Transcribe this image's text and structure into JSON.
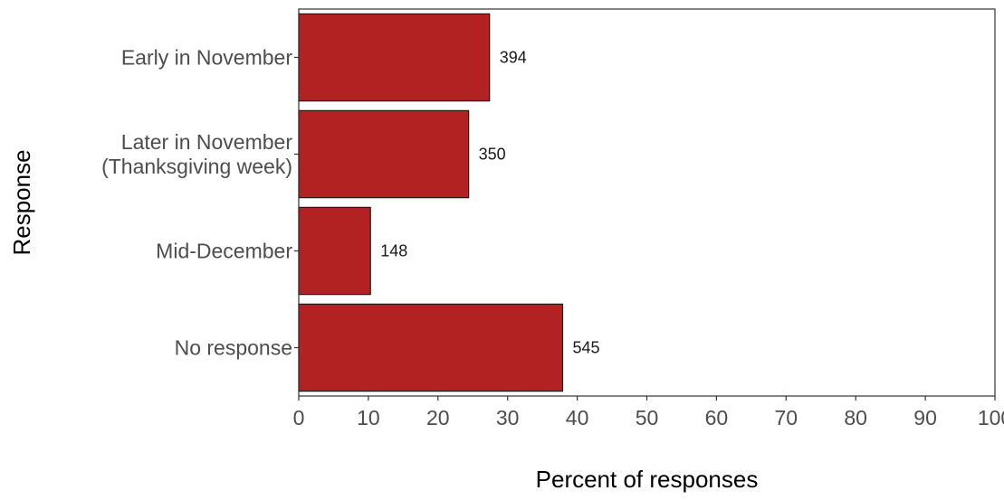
{
  "chart_data": {
    "type": "bar",
    "orientation": "horizontal",
    "categories": [
      "Early in November",
      "Later in November\n(Thanksgiving week)",
      "Mid-December",
      "No response"
    ],
    "values": [
      27.4,
      24.4,
      10.3,
      37.9
    ],
    "counts": [
      "394",
      "350",
      "148",
      "545"
    ],
    "xlabel": "Percent of responses",
    "ylabel": "Response",
    "xlim": [
      0,
      100
    ],
    "x_ticks": [
      0,
      10,
      20,
      30,
      40,
      50,
      60,
      70,
      80,
      90,
      100
    ],
    "bar_color": "#b22222",
    "bar_outline": "#1a1a1a",
    "grid": false
  }
}
